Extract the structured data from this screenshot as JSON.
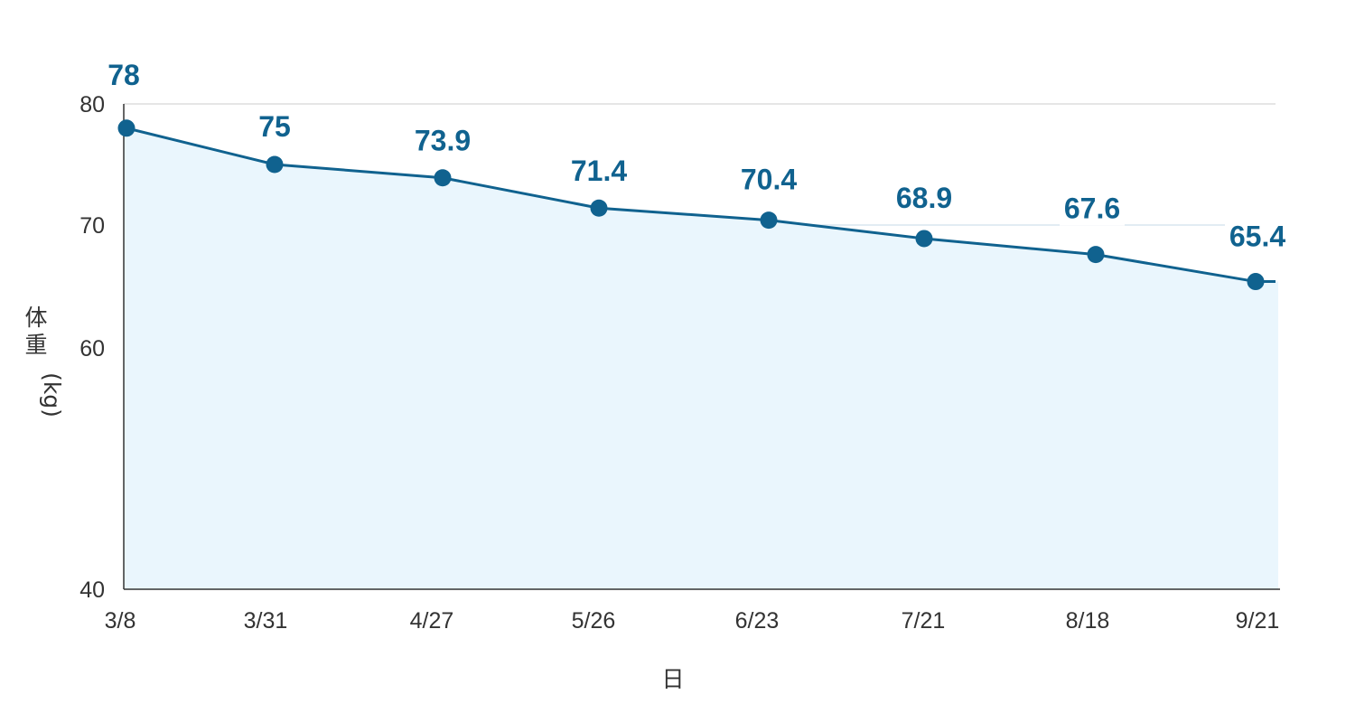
{
  "chart_data": {
    "type": "area",
    "categories": [
      "3/8",
      "3/31",
      "4/27",
      "5/26",
      "6/23",
      "7/21",
      "8/18",
      "9/21"
    ],
    "values": [
      78,
      75,
      73.9,
      71.4,
      70.4,
      68.9,
      67.6,
      65.4
    ],
    "data_labels": [
      "78",
      "75",
      "73.9",
      "71.4",
      "70.4",
      "68.9",
      "67.6",
      "65.4"
    ],
    "ylabel_chars": [
      "体",
      "重"
    ],
    "ylabel_unit": "(kg)",
    "xlabel": "日",
    "y_ticks": [
      {
        "value": 80,
        "label": "80"
      },
      {
        "value": 70,
        "label": "70"
      },
      {
        "value": 60,
        "label": "60"
      },
      {
        "value": 50,
        "label": ""
      },
      {
        "value": 40,
        "label": "40"
      }
    ],
    "ylim": [
      40,
      80
    ],
    "grid": true,
    "colors": {
      "line": "#10628f",
      "marker": "#10628f",
      "fill": "#eaf6fd",
      "grid": "#d9e6ef",
      "label": "#10628f",
      "axis": "#333333"
    }
  }
}
